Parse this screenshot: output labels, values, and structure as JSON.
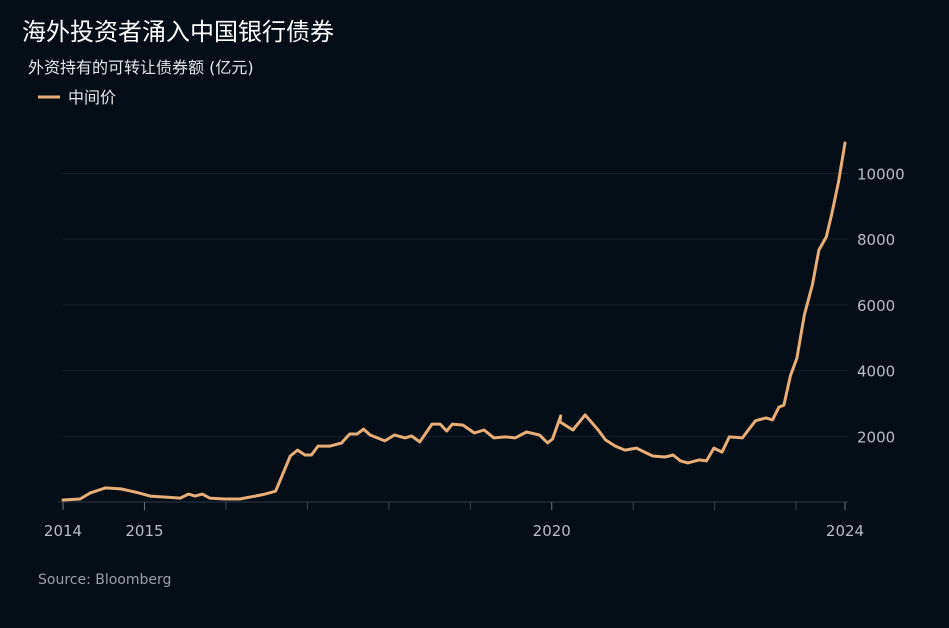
{
  "chart_data": {
    "type": "line",
    "title": "海外投资者涌入中国银行债券",
    "subtitle": "外资持有的可转让债券额 (亿元)",
    "source": "Source: Bloomberg",
    "x": [
      2014.0,
      2014.21,
      2014.33,
      2014.52,
      2014.71,
      2014.89,
      2015.07,
      2015.26,
      2015.44,
      2015.54,
      2015.62,
      2015.71,
      2015.8,
      2015.99,
      2016.17,
      2016.36,
      2016.48,
      2016.61,
      2016.79,
      2016.88,
      2016.97,
      2017.05,
      2017.13,
      2017.28,
      2017.42,
      2017.52,
      2017.61,
      2017.69,
      2017.77,
      2017.95,
      2018.07,
      2018.2,
      2018.28,
      2018.38,
      2018.53,
      2018.63,
      2018.71,
      2018.78,
      2018.91,
      2019.05,
      2019.17,
      2019.29,
      2019.43,
      2019.55,
      2019.69,
      2019.85,
      2019.95,
      2020.01,
      2020.11,
      2020.1,
      2020.26,
      2020.41,
      2020.57,
      2020.66,
      2020.78,
      2020.9,
      2021.04,
      2021.14,
      2021.24,
      2021.39,
      2021.49,
      2021.58,
      2021.67,
      2021.81,
      2021.9,
      2021.99,
      2022.09,
      2022.18,
      2022.34,
      2022.5,
      2022.63,
      2022.71,
      2022.79,
      2022.85,
      2022.93,
      2023.01,
      2023.1,
      2023.2,
      2023.28,
      2023.37,
      2023.44,
      2023.52,
      2023.6
    ],
    "series": [
      {
        "name": "中间价",
        "color": "#e8ae78",
        "values": [
          60,
          90,
          270,
          430,
          400,
          300,
          180,
          150,
          120,
          240,
          180,
          240,
          120,
          90,
          90,
          180,
          240,
          330,
          1400,
          1580,
          1430,
          1430,
          1700,
          1700,
          1800,
          2070,
          2070,
          2220,
          2040,
          1860,
          2040,
          1950,
          2010,
          1830,
          2370,
          2370,
          2160,
          2370,
          2340,
          2100,
          2190,
          1950,
          1980,
          1950,
          2130,
          2040,
          1800,
          1920,
          2620,
          2440,
          2190,
          2650,
          2190,
          1890,
          1700,
          1580,
          1640,
          1520,
          1400,
          1370,
          1430,
          1250,
          1190,
          1280,
          1250,
          1640,
          1520,
          1980,
          1950,
          2470,
          2560,
          2500,
          2890,
          2950,
          3840,
          4380,
          5690,
          6610,
          7670,
          8070,
          8800,
          9740,
          10930
        ]
      }
    ],
    "xlim": [
      2014.0,
      2023.6
    ],
    "xticks": [
      2014,
      2015,
      2020,
      {
        "value": 2023.6,
        "label": "2024"
      }
    ],
    "xminorticks": [
      2016,
      2017,
      2018,
      2019,
      2021,
      2022,
      2023
    ],
    "ylim": [
      0,
      11000
    ],
    "yticks": [
      2000,
      4000,
      6000,
      8000,
      10000
    ],
    "grid": true
  }
}
